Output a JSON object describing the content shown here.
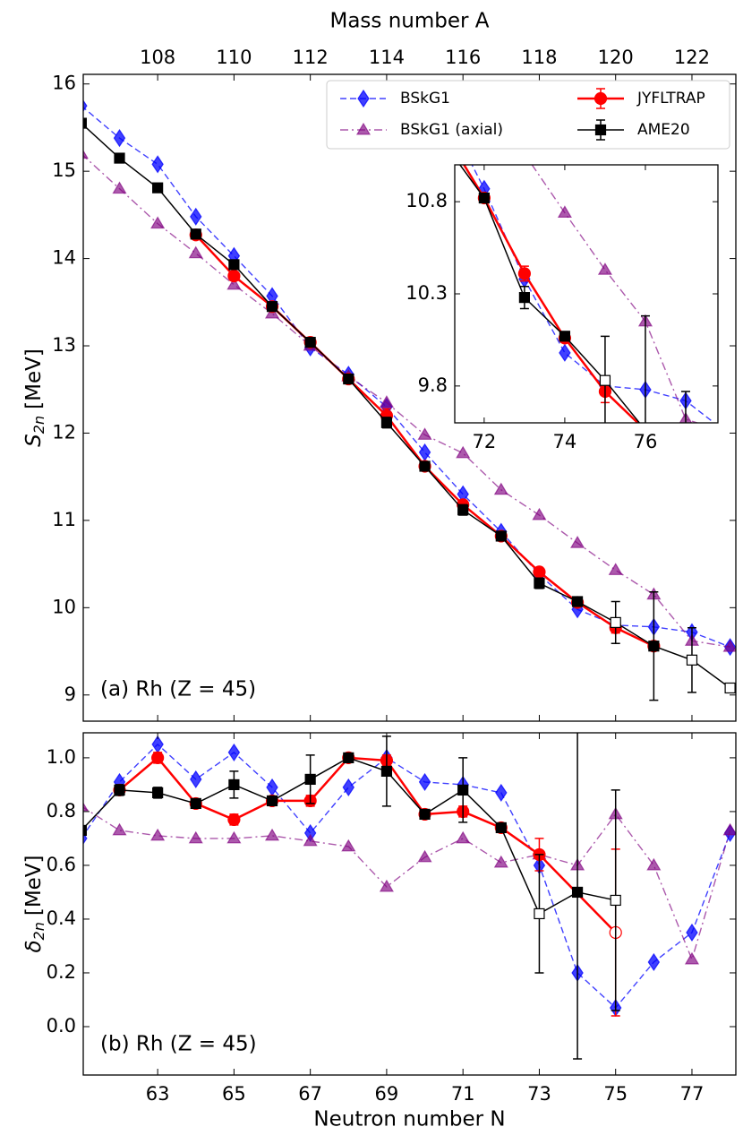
{
  "chart_data": [
    {
      "type": "line",
      "x2_label": "Mass number A",
      "y_label": {
        "symbol": "S",
        "subscript": "2n",
        "unit": "[MeV]"
      },
      "annotation": "(a) Rh (Z = 45)",
      "xlim": [
        61.05,
        78.15
      ],
      "ylim": [
        8.7,
        16.11
      ],
      "x2ticks": [
        {
          "value": 63,
          "label": "108"
        },
        {
          "value": 65,
          "label": "110"
        },
        {
          "value": 67,
          "label": "112"
        },
        {
          "value": 69,
          "label": "114"
        },
        {
          "value": 71,
          "label": "116"
        },
        {
          "value": 73,
          "label": "118"
        },
        {
          "value": 75,
          "label": "120"
        },
        {
          "value": 77,
          "label": "122"
        }
      ],
      "yticks": [
        9,
        10,
        11,
        12,
        13,
        14,
        15,
        16
      ],
      "legend": {
        "loc": "upper right",
        "ncol": 2
      },
      "series": [
        {
          "name": "BSkG1",
          "color": "#0000ff",
          "marker": "diamond",
          "linestyle": "dashed",
          "alpha": 0.75,
          "x": [
            61,
            62,
            63,
            64,
            65,
            66,
            67,
            68,
            69,
            70,
            71,
            72,
            73,
            74,
            75,
            76,
            77,
            78
          ],
          "values": [
            15.75,
            15.38,
            15.08,
            14.48,
            14.03,
            13.57,
            12.98,
            12.67,
            12.3,
            11.78,
            11.3,
            10.87,
            10.38,
            9.98,
            9.8,
            9.78,
            9.72,
            9.55
          ]
        },
        {
          "name": "BSkG1 (axial)",
          "color": "#800080",
          "marker": "triangle",
          "linestyle": "dashdot",
          "alpha": 0.65,
          "x": [
            61,
            62,
            63,
            64,
            65,
            66,
            67,
            68,
            69,
            70,
            71,
            72,
            73,
            74,
            75,
            76,
            77,
            78
          ],
          "values": [
            15.2,
            14.8,
            14.4,
            14.06,
            13.7,
            13.37,
            13.0,
            12.65,
            12.35,
            11.98,
            11.77,
            11.35,
            11.06,
            10.74,
            10.43,
            10.15,
            9.62,
            9.55
          ]
        },
        {
          "name": "JYFLTRAP",
          "color": "#ff0000",
          "marker": "circle",
          "linestyle": "solid",
          "alpha": 1,
          "linewidth": 2.5,
          "x": [
            64,
            65,
            66,
            67,
            68,
            69,
            70,
            71,
            72,
            73,
            74,
            75,
            76
          ],
          "values": [
            14.27,
            13.8,
            13.45,
            13.04,
            12.62,
            12.2,
            11.62,
            11.18,
            10.82,
            10.41,
            10.06,
            9.77,
            9.56
          ],
          "errors": [
            0.02,
            0.05,
            0.02,
            0.05,
            0.02,
            0.08,
            0.02,
            0.05,
            0.02,
            0.04,
            0.02,
            0.06,
            0.02
          ]
        },
        {
          "name": "AME20",
          "color": "#000000",
          "marker": "square",
          "linestyle": "solid",
          "alpha": 1,
          "linewidth": 1.5,
          "x": [
            61,
            62,
            63,
            64,
            65,
            66,
            67,
            68,
            69,
            70,
            71,
            72,
            73,
            74,
            75,
            76,
            77,
            78
          ],
          "values": [
            15.55,
            15.15,
            14.81,
            14.28,
            13.93,
            13.45,
            13.04,
            12.62,
            12.12,
            11.62,
            11.12,
            10.82,
            10.28,
            10.07,
            9.83,
            9.56,
            9.4,
            9.08
          ],
          "errors": [
            0.02,
            0.03,
            0.03,
            0.02,
            0.04,
            0.02,
            0.04,
            0.02,
            0.06,
            0.02,
            0.06,
            0.02,
            0.06,
            0.02,
            0.24,
            0.62,
            0.37,
            0.05
          ],
          "open_x": [
            75,
            77,
            78
          ]
        }
      ],
      "inset": {
        "xlim": [
          71.27,
          77.8
        ],
        "ylim": [
          9.6,
          11.0
        ],
        "xticks": [
          72,
          74,
          76
        ],
        "yticks": [
          10.8,
          10.3,
          9.8
        ]
      }
    },
    {
      "type": "line",
      "x_label": "Neutron number N",
      "y_label": {
        "symbol": "δ",
        "subscript": "2n",
        "unit": "[MeV]"
      },
      "annotation": "(b) Rh (Z = 45)",
      "xlim": [
        61.05,
        78.15
      ],
      "ylim": [
        -0.18,
        1.093
      ],
      "xticks": [
        63,
        65,
        67,
        69,
        71,
        73,
        75,
        77
      ],
      "yticks": [
        {
          "value": 0,
          "label": "0.0"
        },
        {
          "value": 0.2,
          "label": "0.2"
        },
        {
          "value": 0.4,
          "label": "0.4"
        },
        {
          "value": 0.6,
          "label": "0.6"
        },
        {
          "value": 0.8,
          "label": "0.8"
        },
        {
          "value": 1,
          "label": "1.0"
        }
      ],
      "series": [
        {
          "color": "#0000ff",
          "marker": "diamond",
          "linestyle": "dashed",
          "alpha": 0.75,
          "x": [
            61,
            62,
            63,
            64,
            65,
            66,
            67,
            68,
            69,
            70,
            71,
            72,
            73,
            74,
            75,
            76,
            77,
            78
          ],
          "values": [
            0.7,
            0.91,
            1.05,
            0.92,
            1.02,
            0.89,
            0.72,
            0.89,
            1.0,
            0.91,
            0.9,
            0.87,
            0.6,
            0.2,
            0.07,
            0.24,
            0.35,
            0.72
          ]
        },
        {
          "color": "#800080",
          "marker": "triangle",
          "linestyle": "dashdot",
          "alpha": 0.65,
          "x": [
            61,
            62,
            63,
            64,
            65,
            66,
            67,
            68,
            69,
            70,
            71,
            72,
            73,
            74,
            75,
            76,
            77,
            78
          ],
          "values": [
            0.82,
            0.73,
            0.71,
            0.7,
            0.7,
            0.71,
            0.69,
            0.67,
            0.52,
            0.63,
            0.7,
            0.61,
            0.64,
            0.6,
            0.79,
            0.6,
            0.25,
            0.73
          ]
        },
        {
          "color": "#ff0000",
          "marker": "circle",
          "linestyle": "solid",
          "alpha": 1,
          "linewidth": 2.5,
          "x": [
            62,
            63,
            64,
            65,
            66,
            67,
            68,
            69,
            70,
            71,
            72,
            73,
            75
          ],
          "values": [
            0.88,
            1.0,
            0.83,
            0.77,
            0.84,
            0.84,
            1.0,
            0.99,
            0.79,
            0.8,
            0.74,
            0.64,
            0.35
          ],
          "errors": [
            0.01,
            0.02,
            0.01,
            0.02,
            0.01,
            0.02,
            0.01,
            0.02,
            0.01,
            0.02,
            0.01,
            0.06,
            0.31
          ],
          "open_x": [
            75
          ]
        },
        {
          "color": "#000000",
          "marker": "square",
          "linestyle": "solid",
          "alpha": 1,
          "linewidth": 1.5,
          "x": [
            61,
            62,
            63,
            64,
            65,
            66,
            67,
            68,
            69,
            70,
            71,
            72,
            73,
            74,
            75
          ],
          "values": [
            0.73,
            0.88,
            0.87,
            0.83,
            0.9,
            0.84,
            0.92,
            1.0,
            0.95,
            0.79,
            0.88,
            0.74,
            0.42,
            0.5,
            0.47
          ],
          "errors": [
            0.01,
            0.02,
            0.02,
            0.01,
            0.05,
            0.01,
            0.09,
            0.01,
            0.13,
            0.01,
            0.12,
            0.01,
            0.22,
            0.62,
            0.41
          ],
          "open_x": [
            73,
            75
          ]
        }
      ]
    }
  ]
}
